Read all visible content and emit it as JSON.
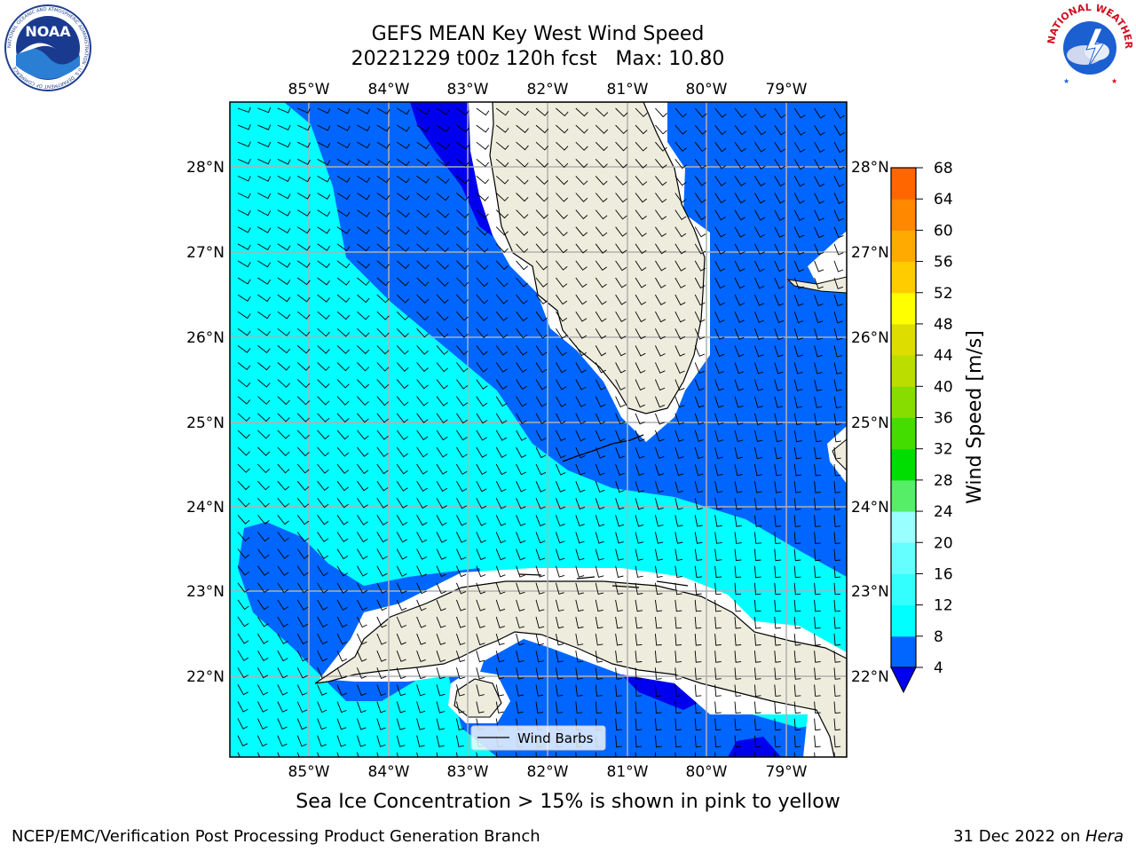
{
  "title": {
    "line1": "GEFS MEAN Key West Wind Speed",
    "line2": "20221229 t00z 120h fcst   Max: 10.80"
  },
  "map": {
    "lon_ticks_labels": [
      "85°W",
      "84°W",
      "83°W",
      "82°W",
      "81°W",
      "80°W",
      "79°W"
    ],
    "lat_ticks_labels": [
      "28°N",
      "27°N",
      "26°N",
      "25°N",
      "24°N",
      "23°N",
      "22°N"
    ],
    "lon_range": [
      -86.0,
      -78.25
    ],
    "lat_range": [
      21.05,
      28.75
    ],
    "gridlines": true,
    "legend_label": "Wind Barbs",
    "regions": [
      "Florida",
      "Cuba",
      "Isla de la Juventud",
      "Florida Keys",
      "Bahamas"
    ]
  },
  "colorbar": {
    "label": "Wind Speed [m/s]",
    "ticks": [
      "4",
      "8",
      "12",
      "16",
      "20",
      "24",
      "28",
      "32",
      "36",
      "40",
      "44",
      "48",
      "52",
      "56",
      "60",
      "64",
      "68"
    ],
    "colors": [
      "#0066ff",
      "#00ffff",
      "#33ffff",
      "#66ffff",
      "#99ffff",
      "#55ee66",
      "#00dd00",
      "#44dd00",
      "#88dd00",
      "#bbdd00",
      "#dddd00",
      "#ffff00",
      "#ffcc00",
      "#ffaa00",
      "#ff8800",
      "#ff6600",
      "#ff3300",
      "#ff0000"
    ],
    "under_color": "#0000ee"
  },
  "logos": {
    "noaa_text": "NOAA",
    "noaa_ring": "NATIONAL OCEANIC AND ATMOSPHERIC ADMINISTRATION · U.S. DEPARTMENT OF COMMERCE",
    "nws_ring": "NATIONAL WEATHER SERVICE"
  },
  "footer": {
    "sea_ice": "Sea Ice Concentration > 15% is shown in pink to yellow",
    "credit": "NCEP/EMC/Verification Post Processing Product Generation Branch",
    "date": "31 Dec 2022 on ",
    "host": "Hera"
  },
  "colors": {
    "land": "#eeecdc",
    "ocean_dark": "#0066ff",
    "ocean_light": "#00ffff",
    "ocean_deep": "#0000ee",
    "grid": "#b0b0b0"
  }
}
